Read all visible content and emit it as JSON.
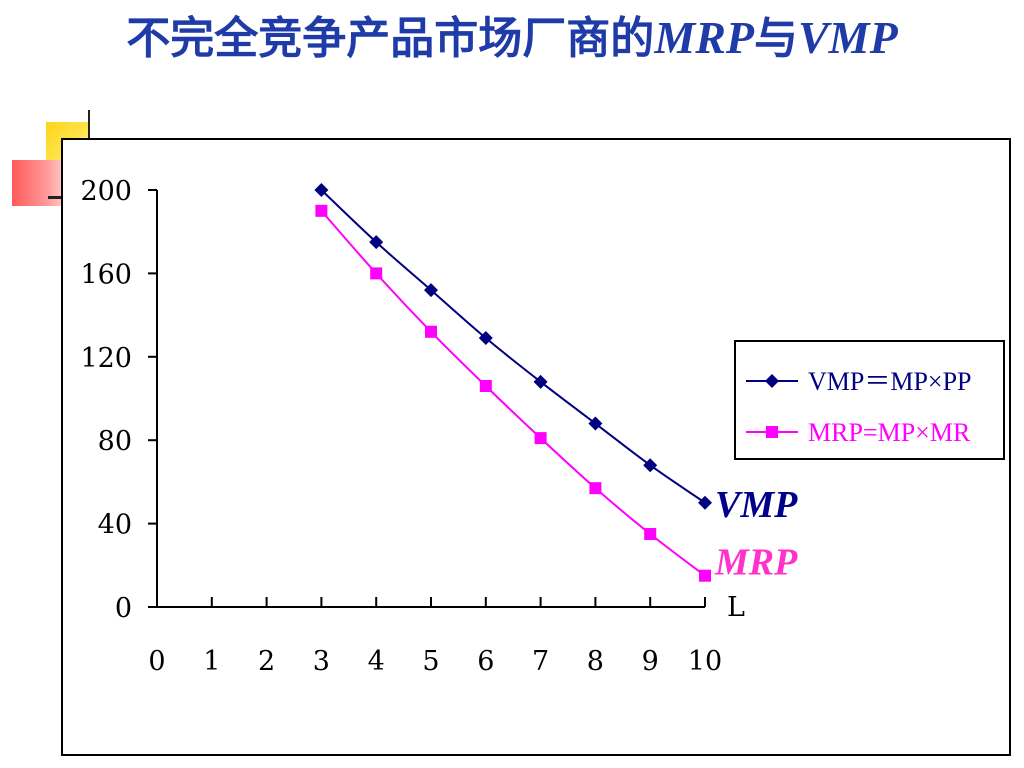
{
  "slide": {
    "title_cn": "不完全竞争产品市场厂商的",
    "title_mrp": "MRP",
    "title_conj": "与",
    "title_vmp": "VMP"
  },
  "colors": {
    "title": "#1f3ba8",
    "vmp": "#000080",
    "mrp": "#ff00ff",
    "vmp_label": "#00008b",
    "mrp_label": "#ff33cc"
  },
  "chart_data": {
    "type": "line",
    "x_axis_label": "L",
    "x_ticks": [
      "0",
      "1",
      "2",
      "3",
      "4",
      "5",
      "6",
      "7",
      "8",
      "9",
      "10"
    ],
    "y_ticks": [
      "0",
      "40",
      "80",
      "120",
      "160",
      "200"
    ],
    "xlim": [
      0,
      10
    ],
    "ylim": [
      0,
      200
    ],
    "grid": false,
    "legend_position": "right",
    "series": [
      {
        "name": "VMP＝MP×PP",
        "curve_label": "VMP",
        "marker": "diamond",
        "x": [
          3,
          4,
          5,
          6,
          7,
          8,
          9,
          10
        ],
        "values": [
          200,
          175,
          152,
          129,
          108,
          88,
          68,
          50
        ]
      },
      {
        "name": "MRP=MP×MR",
        "curve_label": "MRP",
        "marker": "square",
        "x": [
          3,
          4,
          5,
          6,
          7,
          8,
          9,
          10
        ],
        "values": [
          190,
          160,
          132,
          106,
          81,
          57,
          35,
          15
        ]
      }
    ]
  }
}
